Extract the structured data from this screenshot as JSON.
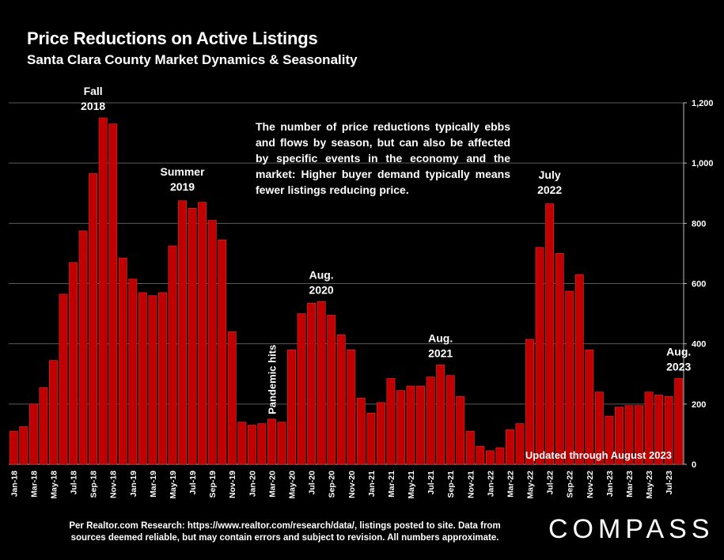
{
  "title": "Price Reductions on Active Listings",
  "subtitle": "Santa Clara County Market Dynamics & Seasonality",
  "note": "The number of price reductions typically ebbs and flows by season, but can also be affected by specific events in the economy and the market:  Higher buyer demand typically means fewer listings reducing price.",
  "updated": "Updated through August 2023",
  "footnote_line1": "Per Realtor.com Research:  https://www.realtor.com/research/data/, listings posted to site. Data from",
  "footnote_line2": "sources deemed reliable, but may contain errors and subject to revision. All numbers approximate.",
  "logo": "COMPASS",
  "colors": {
    "bar": "#c00000",
    "bar_stroke": "#e03030",
    "background": "#000000",
    "text": "#ffffff"
  },
  "chart_data": {
    "type": "bar",
    "categories": [
      "Jan-18",
      "Feb-18",
      "Mar-18",
      "Apr-18",
      "May-18",
      "Jun-18",
      "Jul-18",
      "Aug-18",
      "Sep-18",
      "Oct-18",
      "Nov-18",
      "Dec-18",
      "Jan-19",
      "Feb-19",
      "Mar-19",
      "Apr-19",
      "May-19",
      "Jun-19",
      "Jul-19",
      "Aug-19",
      "Sep-19",
      "Oct-19",
      "Nov-19",
      "Dec-19",
      "Jan-20",
      "Feb-20",
      "Mar-20",
      "Apr-20",
      "May-20",
      "Jun-20",
      "Jul-20",
      "Aug-20",
      "Sep-20",
      "Oct-20",
      "Nov-20",
      "Dec-20",
      "Jan-21",
      "Feb-21",
      "Mar-21",
      "Apr-21",
      "May-21",
      "Jun-21",
      "Jul-21",
      "Aug-21",
      "Sep-21",
      "Oct-21",
      "Nov-21",
      "Dec-21",
      "Jan-22",
      "Feb-22",
      "Mar-22",
      "Apr-22",
      "May-22",
      "Jun-22",
      "Jul-22",
      "Aug-22",
      "Sep-22",
      "Oct-22",
      "Nov-22",
      "Dec-22",
      "Jan-23",
      "Feb-23",
      "Mar-23",
      "Apr-23",
      "May-23",
      "Jun-23",
      "Jul-23",
      "Aug-23"
    ],
    "tick_labels": [
      "Jan-18",
      "Mar-18",
      "May-18",
      "Jul-18",
      "Sep-18",
      "Nov-18",
      "Jan-19",
      "Mar-19",
      "May-19",
      "Jul-19",
      "Sep-19",
      "Nov-19",
      "Jan-20",
      "Mar-20",
      "May-20",
      "Jul-20",
      "Sep-20",
      "Nov-20",
      "Jan-21",
      "Mar-21",
      "May-21",
      "Jul-21",
      "Sep-21",
      "Nov-21",
      "Jan-22",
      "Mar-22",
      "May-22",
      "Jul-22",
      "Sep-22",
      "Nov-22",
      "Jan-23",
      "Mar-23",
      "May-23",
      "Jul-23"
    ],
    "values": [
      110,
      125,
      200,
      255,
      345,
      565,
      670,
      775,
      965,
      1150,
      1130,
      685,
      615,
      570,
      560,
      570,
      725,
      875,
      850,
      870,
      810,
      745,
      440,
      140,
      130,
      135,
      150,
      140,
      380,
      500,
      535,
      540,
      495,
      430,
      380,
      220,
      170,
      205,
      285,
      245,
      260,
      260,
      290,
      330,
      295,
      225,
      110,
      60,
      45,
      55,
      115,
      135,
      415,
      720,
      865,
      700,
      575,
      630,
      380,
      240,
      160,
      190,
      195,
      195,
      240,
      230,
      225,
      285
    ],
    "yaxis": {
      "position": "right",
      "ticks": [
        "0",
        "200",
        "400",
        "600",
        "800",
        "1,000",
        "1,200"
      ],
      "ylim": [
        0,
        1200
      ]
    },
    "grid": "horizontal",
    "annotations": [
      {
        "text": [
          "Fall",
          "2018"
        ],
        "category": "Sep-18"
      },
      {
        "text": [
          "Summer",
          "2019"
        ],
        "category": "Jun-19"
      },
      {
        "text": [
          "Pandemic hits"
        ],
        "category": "Mar-20",
        "rotated": true
      },
      {
        "text": [
          "Aug.",
          "2020"
        ],
        "category": "Aug-20"
      },
      {
        "text": [
          "Aug.",
          "2021"
        ],
        "category": "Aug-21"
      },
      {
        "text": [
          "July",
          "2022"
        ],
        "category": "Jul-22"
      },
      {
        "text": [
          "Aug.",
          "2023"
        ],
        "category": "Aug-23"
      }
    ]
  }
}
